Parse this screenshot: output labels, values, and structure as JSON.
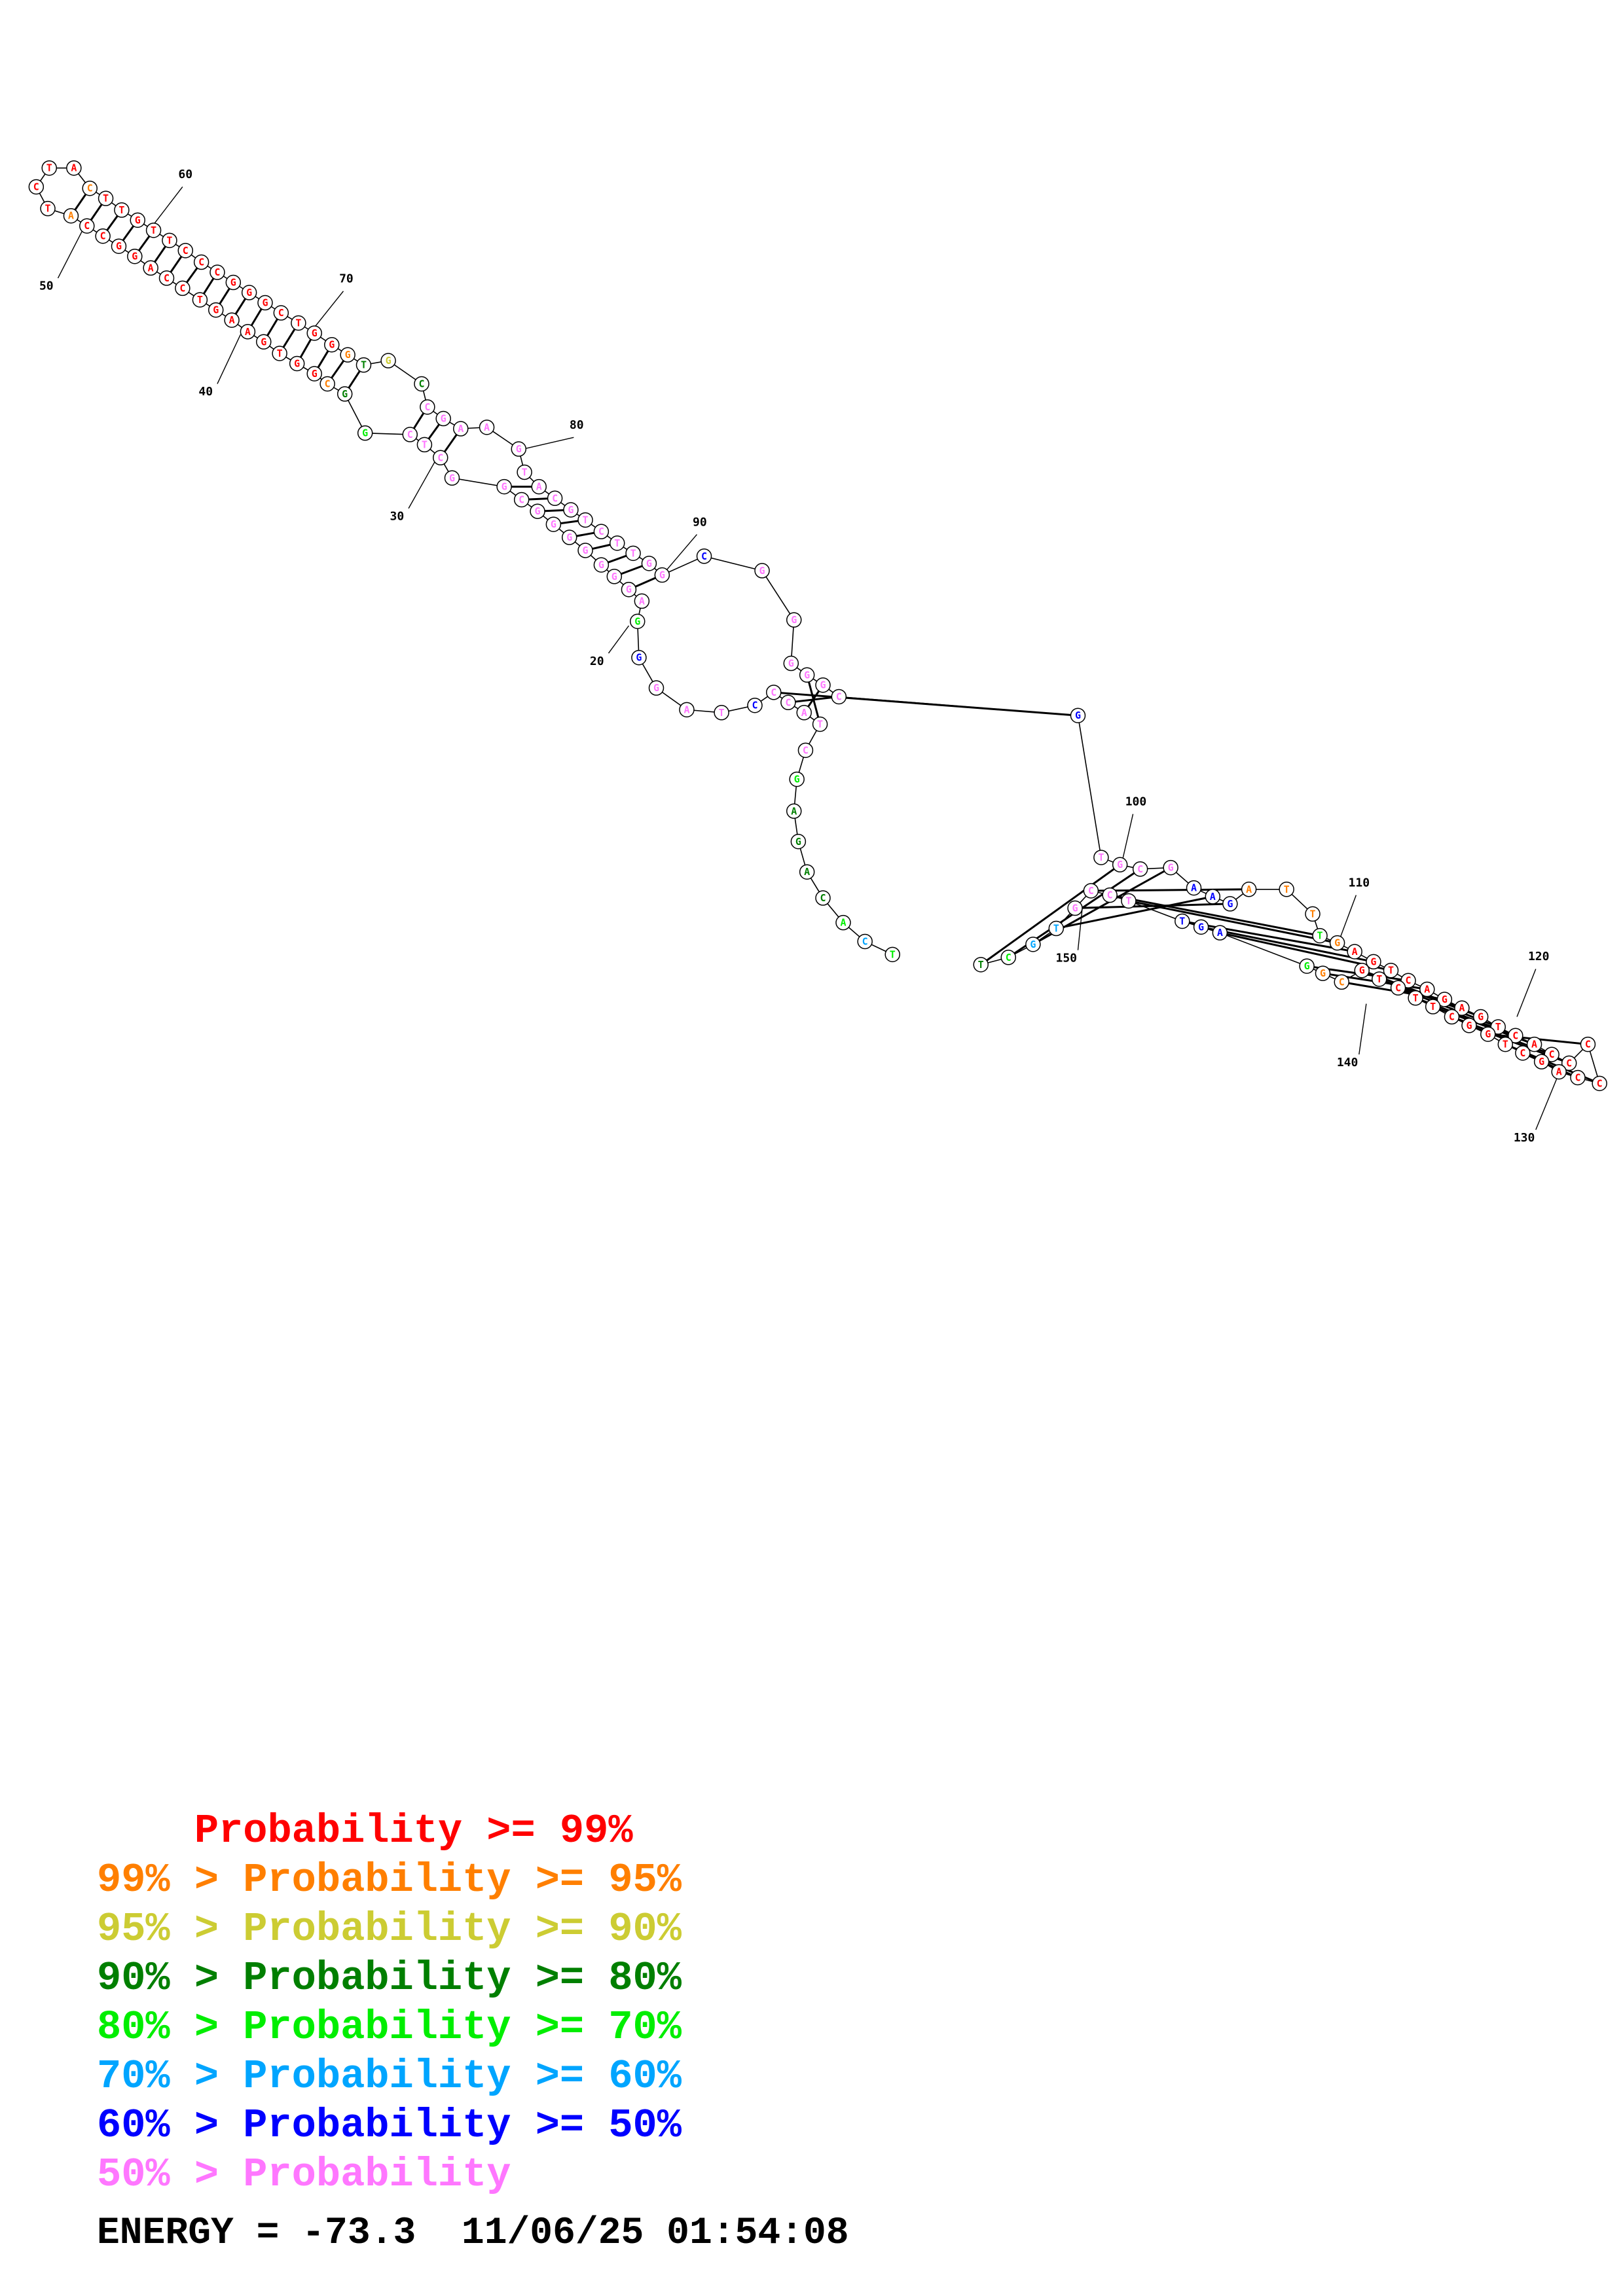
{
  "structure": {
    "sequence": "TCACAGAGCTACCCTAGGGAGGGGGGGCGGCTCGGCGGTGAAGTCCAGGCCATCTACTTGTTCCCGGGCTGGGTGCCGAAGTACGTCTTGGCGGGGGCGTGCGAAGATTTGAGTCAGAGTCACCCCCAGCTGGCTTCTGCGGAGTTCCGTGCTTCGG",
    "tick_labels": [
      "20",
      "30",
      "40",
      "50",
      "60",
      "70",
      "80",
      "90",
      "100",
      "110",
      "120",
      "130",
      "140",
      "150"
    ]
  },
  "legend": {
    "rows": [
      {
        "prefix": "    ",
        "text": "Probability >= 99%",
        "color": "#ff0000"
      },
      {
        "prefix": "99% > ",
        "text": "Probability >= 95%",
        "color": "#ff7f00"
      },
      {
        "prefix": "95% > ",
        "text": "Probability >= 90%",
        "color": "#cccc33"
      },
      {
        "prefix": "90% > ",
        "text": "Probability >= 80%",
        "color": "#007f00"
      },
      {
        "prefix": "80% > ",
        "text": "Probability >= 70%",
        "color": "#00ee00"
      },
      {
        "prefix": "70% > ",
        "text": "Probability >= 60%",
        "color": "#00a5ff"
      },
      {
        "prefix": "60% > ",
        "text": "Probability >= 50%",
        "color": "#0000ff"
      },
      {
        "prefix": "50% > ",
        "text": "Probability",
        "color": "#ff77ff"
      }
    ]
  },
  "footer": {
    "energy_text": "ENERGY = -73.3  11/06/25 01:54:08"
  }
}
